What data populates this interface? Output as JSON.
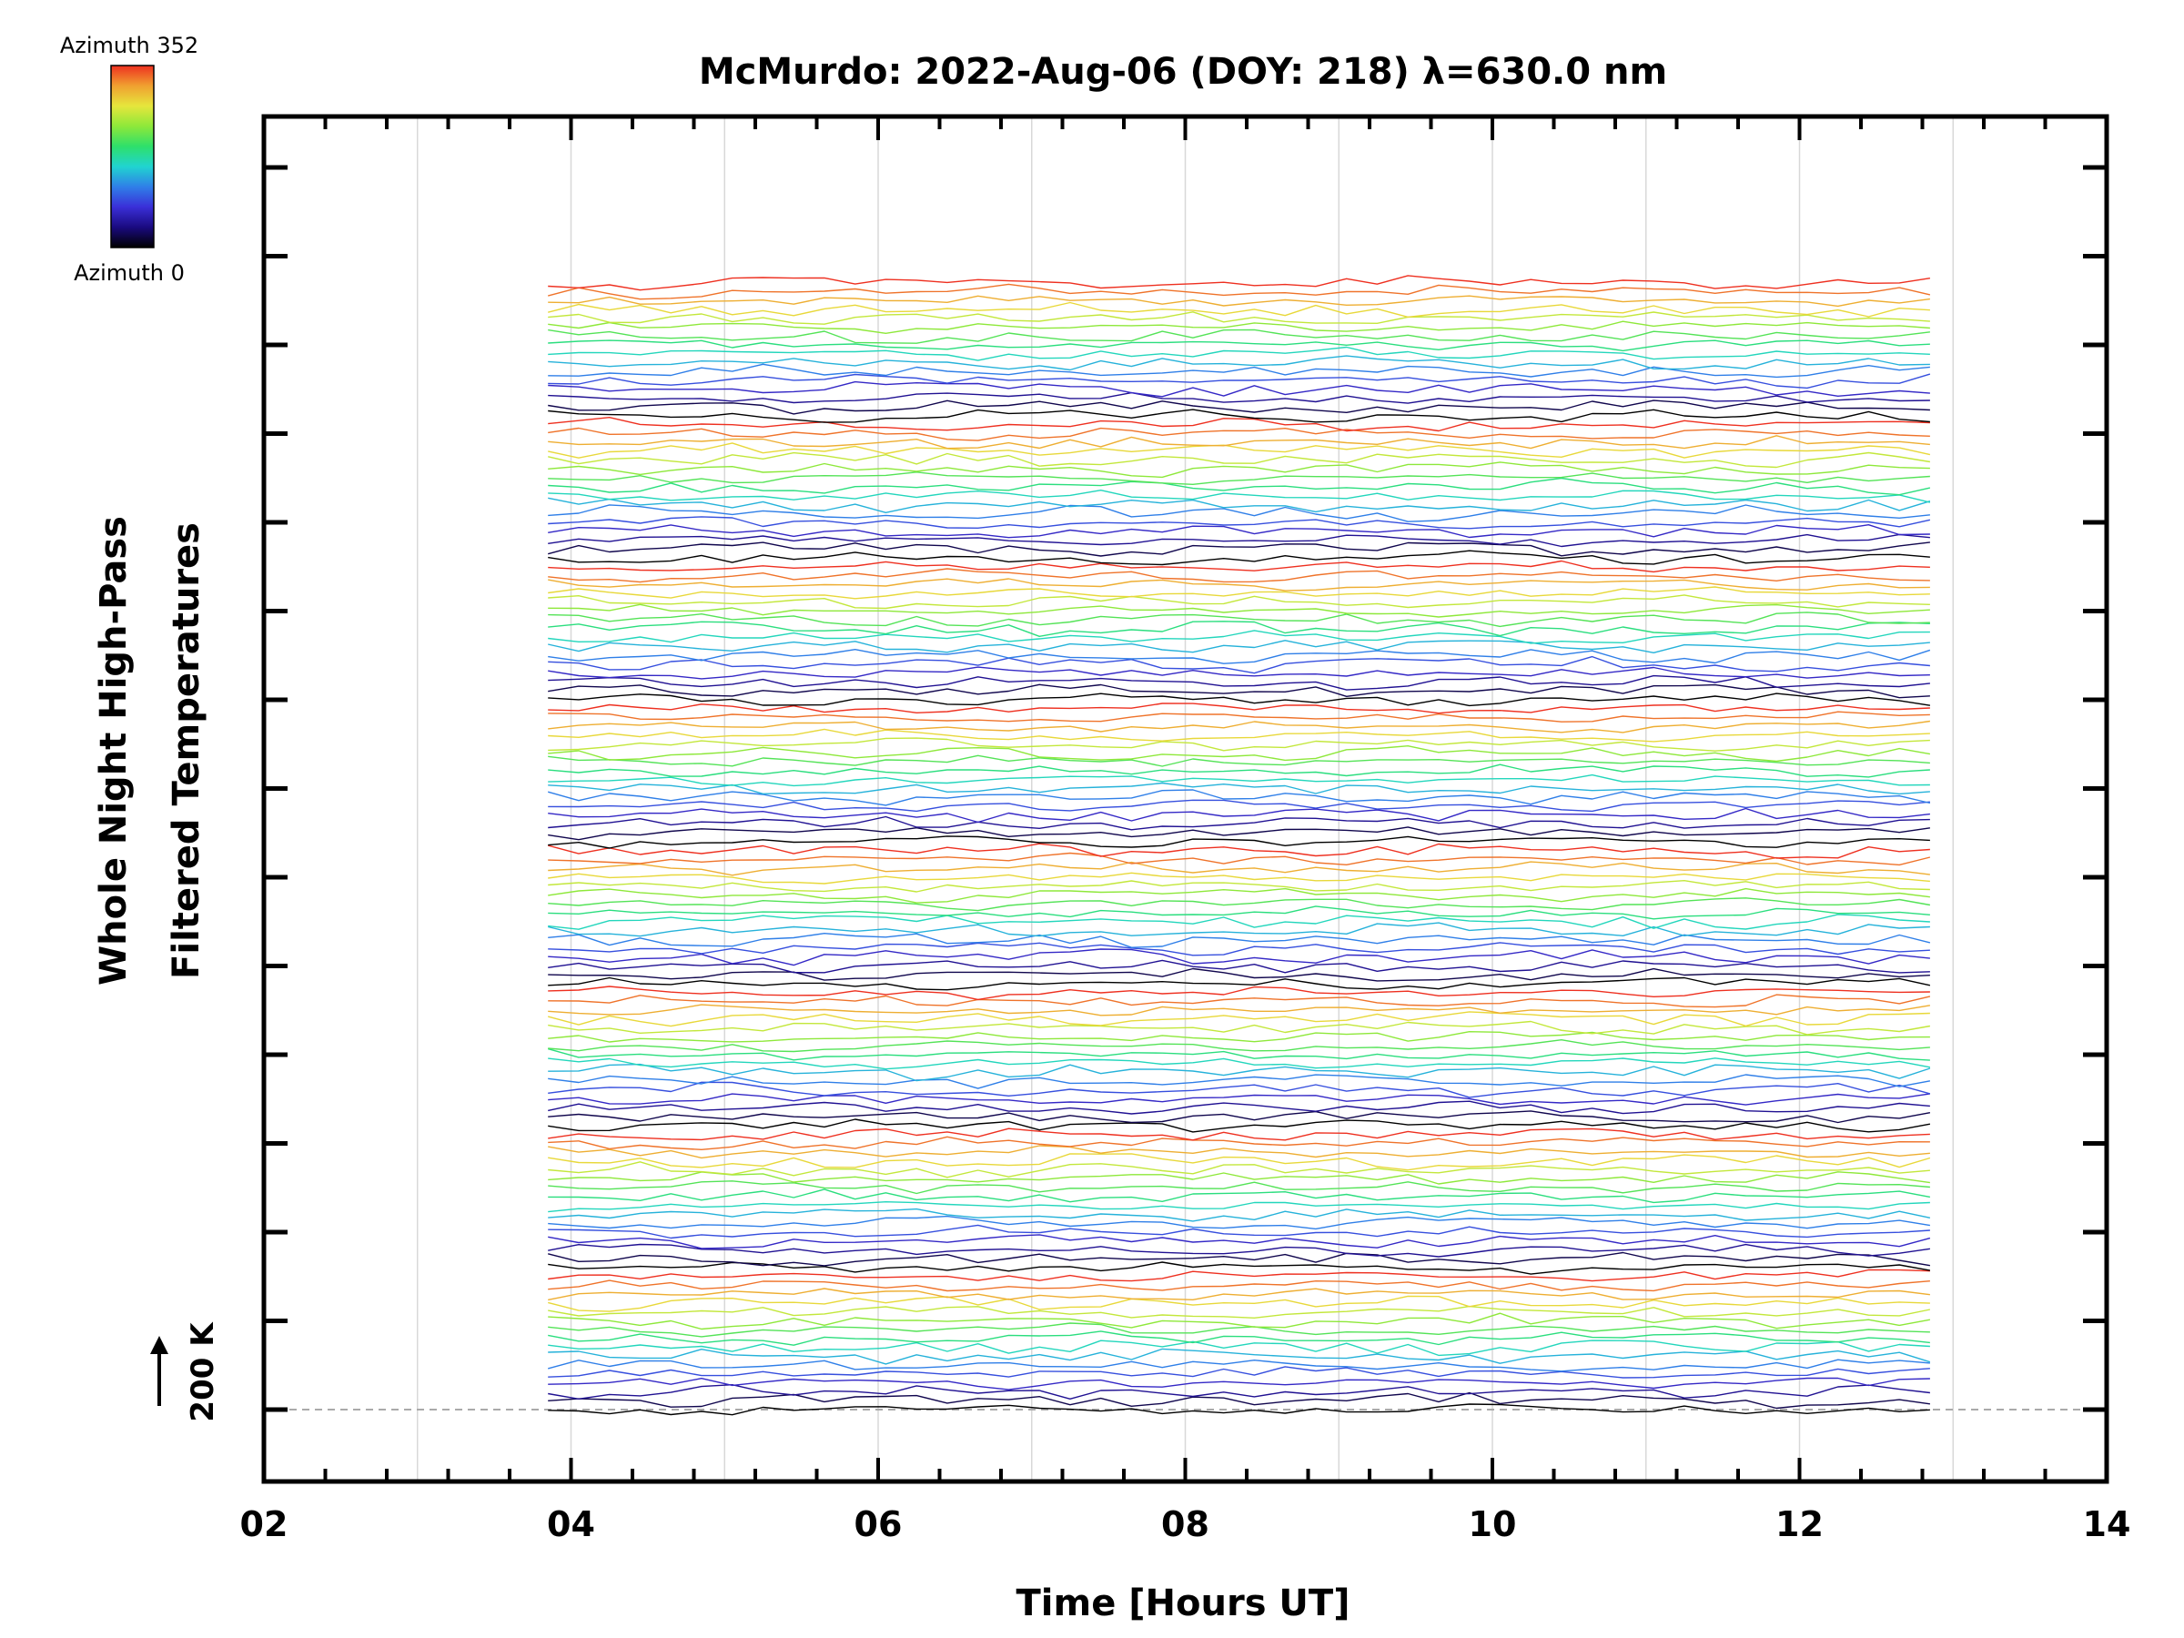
{
  "chart_data": {
    "type": "line",
    "title": "McMurdo: 2022-Aug-06 (DOY: 218) λ=630.0 nm",
    "xlabel": "Time [Hours UT]",
    "ylabel_line1": "Whole Night High-Pass",
    "ylabel_line2": "Filtered Temperatures",
    "xlim": [
      2,
      14
    ],
    "x_ticks": [
      "02",
      "04",
      "06",
      "08",
      "10",
      "12",
      "14"
    ],
    "x_grid_every_hours": 1,
    "data_time_range": [
      3.85,
      12.95
    ],
    "sample_interval_hours": 0.2,
    "num_traces": 128,
    "traces_per_group": 16,
    "reference_label": "200 K",
    "reference_scale_kelvin": 200,
    "colorbar": {
      "label_top": "Azimuth 352",
      "label_bottom": "Azimuth 0",
      "azimuth_range": [
        0,
        352
      ],
      "colors": [
        "#000000",
        "#1a0a80",
        "#3a2fd8",
        "#2f7fe8",
        "#20d4d0",
        "#2ee06a",
        "#8ee83a",
        "#e6e63c",
        "#f0a030",
        "#ee3020"
      ]
    },
    "trace_line_width": 1.4,
    "grid": true
  }
}
